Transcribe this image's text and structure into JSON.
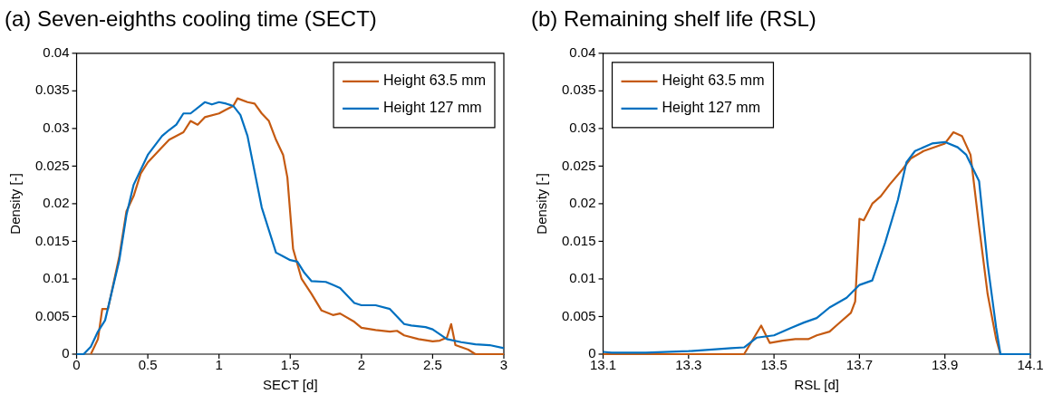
{
  "chart_data": [
    {
      "type": "line",
      "title": "(a) Seven-eighths cooling time (SECT)",
      "xlabel": "SECT [d]",
      "ylabel": "Density [-]",
      "xlim": [
        0,
        3
      ],
      "xticks": [
        0,
        0.5,
        1,
        1.5,
        2,
        2.5,
        3
      ],
      "ylim": [
        0,
        0.04
      ],
      "yticks": [
        0,
        0.005,
        0.01,
        0.015,
        0.02,
        0.025,
        0.03,
        0.035,
        0.04
      ],
      "grid": false,
      "legend": "top right",
      "marker": "none",
      "line_style": "solid",
      "series": [
        {
          "name": "Height 63.5 mm",
          "color": "#c55a11",
          "x": [
            0.1,
            0.15,
            0.18,
            0.22,
            0.3,
            0.35,
            0.4,
            0.45,
            0.5,
            0.6,
            0.65,
            0.75,
            0.8,
            0.85,
            0.9,
            1.0,
            1.05,
            1.1,
            1.13,
            1.2,
            1.25,
            1.3,
            1.35,
            1.4,
            1.45,
            1.48,
            1.52,
            1.58,
            1.65,
            1.72,
            1.8,
            1.85,
            1.95,
            2.0,
            2.1,
            2.2,
            2.25,
            2.3,
            2.4,
            2.5,
            2.55,
            2.6,
            2.63,
            2.66,
            2.75,
            2.8,
            3.0
          ],
          "values": [
            0,
            0.002,
            0.006,
            0.006,
            0.013,
            0.019,
            0.021,
            0.024,
            0.0255,
            0.0275,
            0.0285,
            0.0295,
            0.031,
            0.0305,
            0.0315,
            0.032,
            0.0325,
            0.033,
            0.034,
            0.0335,
            0.0333,
            0.032,
            0.031,
            0.0285,
            0.0265,
            0.0235,
            0.014,
            0.01,
            0.008,
            0.0058,
            0.0052,
            0.0054,
            0.0043,
            0.0035,
            0.0032,
            0.003,
            0.0031,
            0.0025,
            0.002,
            0.0017,
            0.0018,
            0.0022,
            0.004,
            0.0012,
            0.0006,
            0,
            0
          ]
        },
        {
          "name": "Height 127 mm",
          "color": "#0070c0",
          "x": [
            0,
            0.05,
            0.1,
            0.15,
            0.2,
            0.3,
            0.35,
            0.4,
            0.5,
            0.6,
            0.65,
            0.7,
            0.75,
            0.8,
            0.9,
            0.95,
            1.0,
            1.05,
            1.1,
            1.15,
            1.2,
            1.3,
            1.4,
            1.45,
            1.5,
            1.55,
            1.6,
            1.65,
            1.75,
            1.8,
            1.85,
            1.95,
            2.0,
            2.1,
            2.2,
            2.25,
            2.3,
            2.35,
            2.45,
            2.5,
            2.6,
            2.7,
            2.8,
            2.9,
            3.0
          ],
          "values": [
            0,
            0,
            0.001,
            0.003,
            0.0045,
            0.0125,
            0.0185,
            0.0225,
            0.0265,
            0.029,
            0.0298,
            0.0305,
            0.032,
            0.032,
            0.0335,
            0.0332,
            0.0335,
            0.0333,
            0.033,
            0.0318,
            0.029,
            0.0195,
            0.0135,
            0.013,
            0.0125,
            0.0123,
            0.0108,
            0.0097,
            0.0096,
            0.0092,
            0.0088,
            0.0068,
            0.0065,
            0.0065,
            0.006,
            0.005,
            0.004,
            0.0038,
            0.0036,
            0.0033,
            0.002,
            0.0016,
            0.0013,
            0.0012,
            0.0008
          ]
        }
      ]
    },
    {
      "type": "line",
      "title": "(b) Remaining shelf life (RSL)",
      "xlabel": "RSL [d]",
      "ylabel": "Density [-]",
      "xlim": [
        13.1,
        14.1
      ],
      "xticks": [
        13.1,
        13.3,
        13.5,
        13.7,
        13.9,
        14.1
      ],
      "ylim": [
        0,
        0.04
      ],
      "yticks": [
        0,
        0.005,
        0.01,
        0.015,
        0.02,
        0.025,
        0.03,
        0.035,
        0.04
      ],
      "grid": false,
      "legend": "top left",
      "marker": "none",
      "line_style": "solid",
      "series": [
        {
          "name": "Height 63.5 mm",
          "color": "#c55a11",
          "x": [
            13.1,
            13.43,
            13.47,
            13.49,
            13.52,
            13.55,
            13.58,
            13.6,
            13.63,
            13.65,
            13.68,
            13.69,
            13.7,
            13.71,
            13.73,
            13.75,
            13.77,
            13.8,
            13.82,
            13.85,
            13.9,
            13.92,
            13.94,
            13.96,
            13.98,
            14.0,
            14.02,
            14.03,
            14.1
          ],
          "values": [
            0,
            0,
            0.0038,
            0.0015,
            0.0018,
            0.002,
            0.002,
            0.0025,
            0.003,
            0.004,
            0.0055,
            0.007,
            0.018,
            0.0178,
            0.02,
            0.021,
            0.0225,
            0.0245,
            0.026,
            0.027,
            0.028,
            0.0295,
            0.029,
            0.0265,
            0.017,
            0.008,
            0.002,
            0,
            0
          ]
        },
        {
          "name": "Height 127 mm",
          "color": "#0070c0",
          "x": [
            13.1,
            13.12,
            13.2,
            13.3,
            13.4,
            13.43,
            13.46,
            13.5,
            13.54,
            13.57,
            13.6,
            13.63,
            13.67,
            13.7,
            13.73,
            13.76,
            13.79,
            13.81,
            13.83,
            13.87,
            13.9,
            13.93,
            13.95,
            13.98,
            14.0,
            14.02,
            14.03,
            14.1
          ],
          "values": [
            0.0003,
            0.0002,
            0.0002,
            0.0004,
            0.0008,
            0.0009,
            0.0022,
            0.0025,
            0.0035,
            0.0042,
            0.0048,
            0.0062,
            0.0075,
            0.0092,
            0.0098,
            0.0148,
            0.0205,
            0.0255,
            0.027,
            0.028,
            0.0282,
            0.0275,
            0.0265,
            0.023,
            0.012,
            0.0035,
            0,
            0
          ]
        }
      ]
    }
  ]
}
